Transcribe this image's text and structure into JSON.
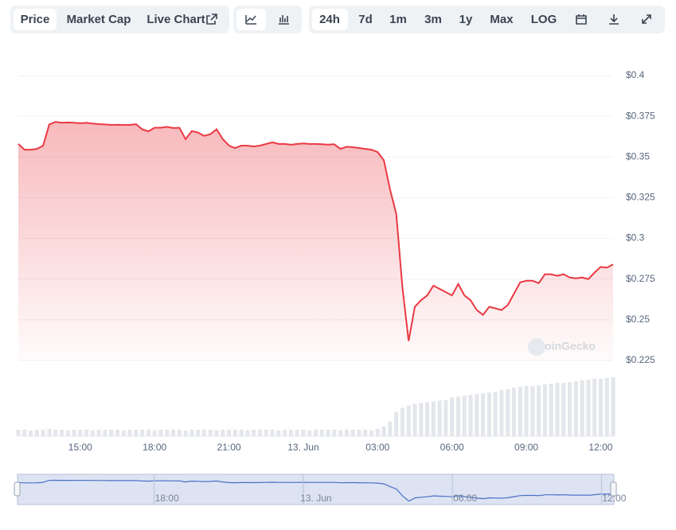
{
  "toolbar": {
    "tabs": [
      "Price",
      "Market Cap",
      "Live Chart"
    ],
    "ranges": [
      "24h",
      "7d",
      "1m",
      "3m",
      "1y",
      "Max"
    ],
    "scale": "LOG"
  },
  "chart_data": {
    "type": "area",
    "color": "#ea3943",
    "watermark": "CoinGecko",
    "categories": [
      null,
      null,
      null,
      null,
      null,
      null,
      null,
      null,
      null,
      null,
      "15:00",
      null,
      null,
      null,
      null,
      null,
      null,
      null,
      null,
      null,
      null,
      null,
      "18:00",
      null,
      null,
      null,
      null,
      null,
      null,
      null,
      null,
      null,
      null,
      null,
      "21:00",
      null,
      null,
      null,
      null,
      null,
      null,
      null,
      null,
      null,
      null,
      null,
      "13. Jun",
      null,
      null,
      null,
      null,
      null,
      null,
      null,
      null,
      null,
      null,
      null,
      "03:00",
      null,
      null,
      null,
      null,
      null,
      null,
      null,
      null,
      null,
      null,
      null,
      "06:00",
      null,
      null,
      null,
      null,
      null,
      null,
      null,
      null,
      null,
      null,
      null,
      "09:00",
      null,
      null,
      null,
      null,
      null,
      null,
      null,
      null,
      null,
      null,
      null,
      "12:00",
      null,
      null
    ],
    "values": [
      0.358,
      0.3545,
      0.3545,
      0.355,
      0.357,
      0.37,
      0.3716,
      0.371,
      0.3712,
      0.371,
      0.3707,
      0.371,
      0.3705,
      0.3702,
      0.37,
      0.3697,
      0.3698,
      0.3697,
      0.3697,
      0.3702,
      0.367,
      0.3658,
      0.368,
      0.368,
      0.3685,
      0.3678,
      0.368,
      0.361,
      0.366,
      0.365,
      0.363,
      0.364,
      0.367,
      0.361,
      0.357,
      0.3555,
      0.357,
      0.357,
      0.3565,
      0.357,
      0.358,
      0.359,
      0.358,
      0.358,
      0.3575,
      0.358,
      0.3583,
      0.358,
      0.358,
      0.3578,
      0.3576,
      0.3578,
      0.355,
      0.3563,
      0.356,
      0.3555,
      0.355,
      0.3545,
      0.353,
      0.348,
      0.33,
      0.315,
      0.27,
      0.237,
      0.258,
      0.262,
      0.265,
      0.271,
      0.269,
      0.267,
      0.265,
      0.272,
      0.265,
      0.262,
      0.256,
      0.253,
      0.258,
      0.257,
      0.256,
      0.259,
      0.266,
      0.273,
      0.274,
      0.274,
      0.2725,
      0.278,
      0.278,
      0.277,
      0.278,
      0.276,
      0.2755,
      0.276,
      0.275,
      0.279,
      0.2825,
      0.282,
      0.284
    ],
    "volume": [
      8,
      8,
      7,
      8,
      8,
      9,
      8,
      8,
      7,
      8,
      8,
      8,
      7,
      8,
      8,
      8,
      8,
      7,
      8,
      8,
      8,
      8,
      7,
      8,
      8,
      8,
      8,
      7,
      8,
      8,
      8,
      8,
      7,
      8,
      8,
      8,
      8,
      7,
      8,
      8,
      8,
      8,
      7,
      8,
      8,
      8,
      8,
      7,
      8,
      8,
      8,
      8,
      7,
      8,
      8,
      8,
      8,
      7,
      9,
      12,
      18,
      30,
      35,
      38,
      40,
      41,
      42,
      43,
      44,
      45,
      48,
      49,
      50,
      51,
      52,
      53,
      54,
      55,
      57,
      58,
      60,
      61,
      62,
      62,
      63,
      64,
      65,
      66,
      66,
      67,
      68,
      69,
      70,
      71,
      71,
      72,
      73
    ],
    "volume_color": "#e3e6ea",
    "ylim": [
      0.225,
      0.4
    ],
    "yticks": [
      {
        "value": 0.225,
        "label": "$0.225"
      },
      {
        "value": 0.25,
        "label": "$0.25"
      },
      {
        "value": 0.275,
        "label": "$0.275"
      },
      {
        "value": 0.3,
        "label": "$0.3"
      },
      {
        "value": 0.325,
        "label": "$0.325"
      },
      {
        "value": 0.35,
        "label": "$0.35"
      },
      {
        "value": 0.375,
        "label": "$0.375"
      },
      {
        "value": 0.4,
        "label": "$0.4"
      }
    ],
    "grid": true,
    "navigator_color": "#4a6fc7"
  }
}
